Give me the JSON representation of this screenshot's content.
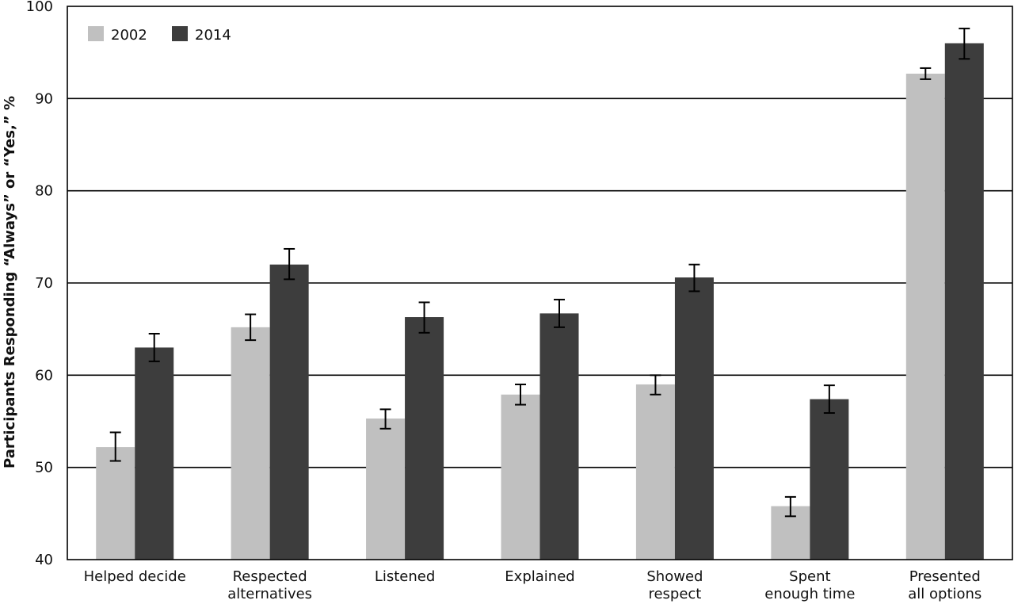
{
  "chart_data": {
    "type": "bar",
    "ylabel": "Participants Responding “Always” or “Yes,” %",
    "xlabel": "",
    "ylim": [
      40,
      100
    ],
    "yticks": [
      "40",
      "50",
      "60",
      "70",
      "80",
      "90",
      "100"
    ],
    "grid": true,
    "legend_position": "top-left",
    "categories": [
      [
        "Helped decide"
      ],
      [
        "Respected",
        "alternatives"
      ],
      [
        "Listened"
      ],
      [
        "Explained"
      ],
      [
        "Showed",
        "respect"
      ],
      [
        "Spent",
        "enough time"
      ],
      [
        "Presented",
        "all options"
      ]
    ],
    "series": [
      {
        "name": "2002",
        "color": "#c0c0c0",
        "values": [
          52.2,
          65.2,
          55.3,
          57.9,
          59.0,
          45.8,
          92.7
        ],
        "error_low": [
          50.7,
          63.8,
          54.2,
          56.8,
          57.9,
          44.7,
          92.1
        ],
        "error_high": [
          53.8,
          66.6,
          56.3,
          59.0,
          60.0,
          46.8,
          93.3
        ]
      },
      {
        "name": "2014",
        "color": "#3d3d3d",
        "values": [
          63.0,
          72.0,
          66.3,
          66.7,
          70.6,
          57.4,
          96.0
        ],
        "error_low": [
          61.5,
          70.4,
          64.6,
          65.2,
          69.1,
          55.9,
          94.3
        ],
        "error_high": [
          64.5,
          73.7,
          67.9,
          68.2,
          72.0,
          58.9,
          97.6
        ]
      }
    ]
  }
}
